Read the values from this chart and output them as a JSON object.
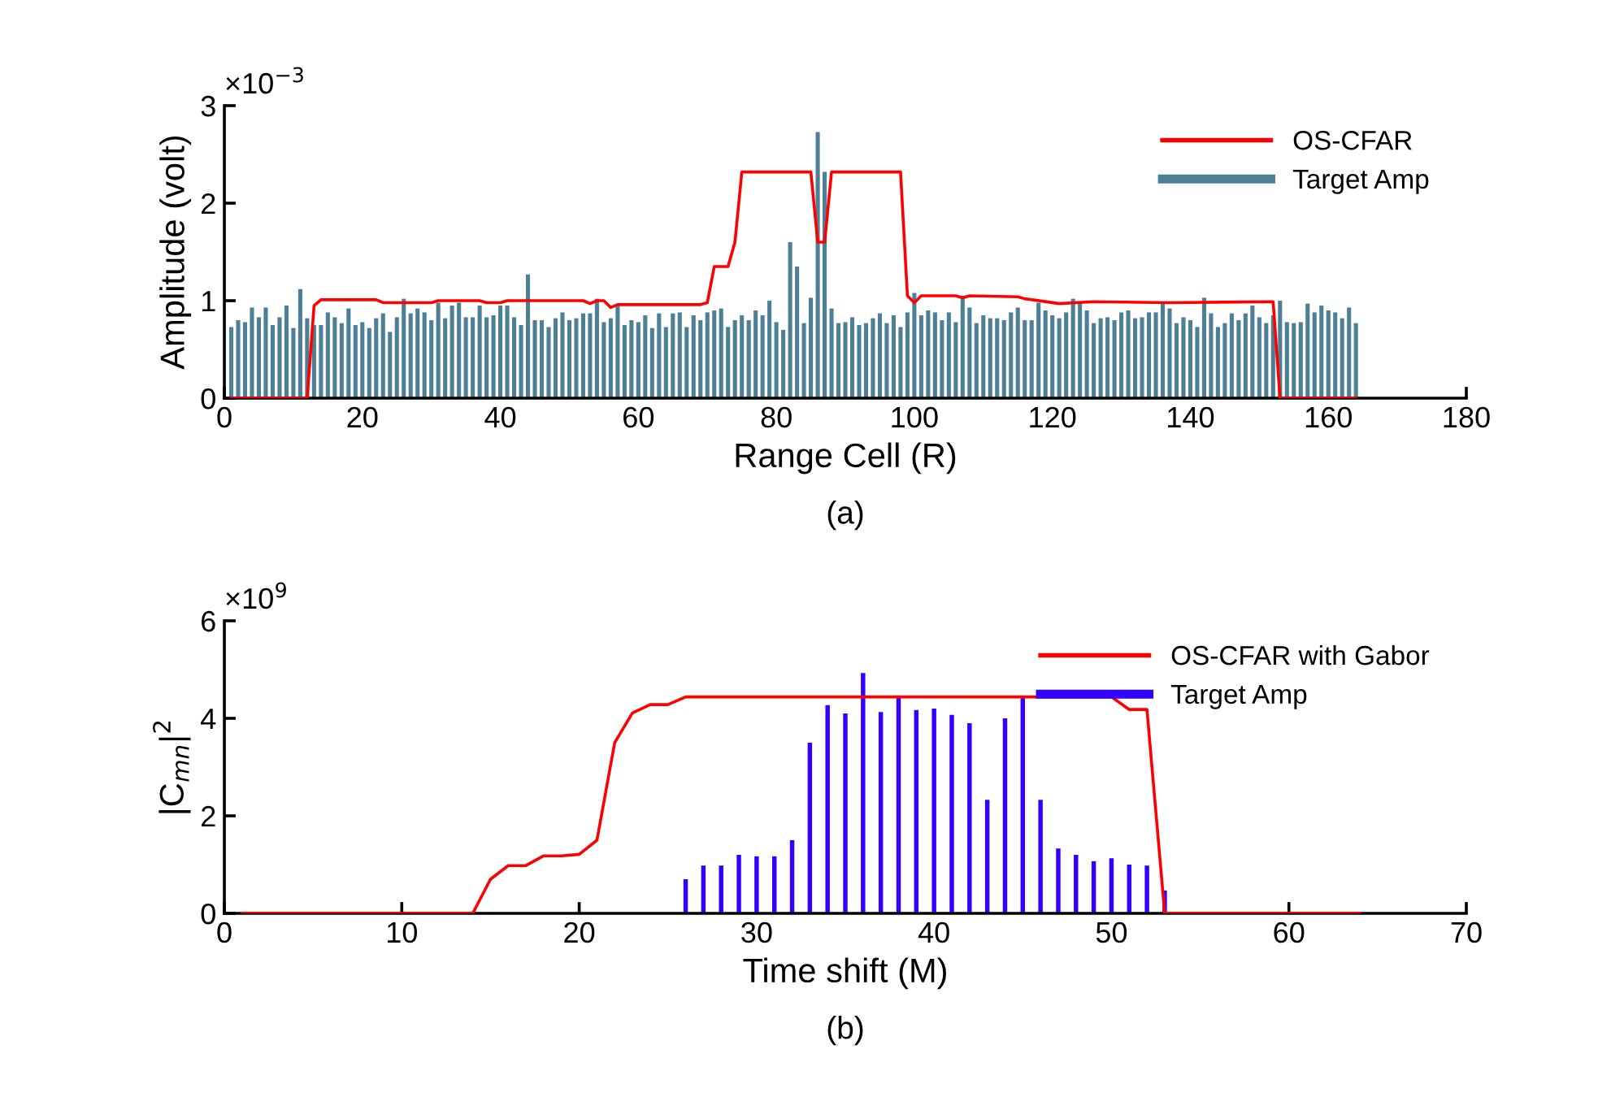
{
  "chart_data": [
    {
      "type": "bar",
      "xlabel": "Range Cell (R)",
      "ylabel": "Amplitude (volt)",
      "annotations": [
        "×10$^{−3}$",
        "(a)"
      ],
      "xlim": [
        0,
        180
      ],
      "xticks": [
        0,
        20,
        40,
        60,
        80,
        100,
        120,
        140,
        160,
        180
      ],
      "ylim": [
        0,
        3
      ],
      "yticks": [
        0,
        1,
        2,
        3
      ],
      "legend": "top right",
      "grid": false,
      "series": [
        {
          "name": "OS-CFAR",
          "type": "line",
          "color": "#ff0000",
          "x": [
            1,
            12,
            13,
            14,
            22,
            23,
            30,
            31,
            37,
            38,
            40,
            41,
            52,
            53,
            54,
            55,
            56,
            57,
            69,
            70,
            71,
            73,
            74,
            75,
            85,
            86,
            87,
            88,
            98,
            99,
            100,
            101,
            106,
            107,
            108,
            115,
            116,
            121,
            126,
            137,
            152,
            153,
            164
          ],
          "values": [
            0,
            0,
            0.95,
            1.01,
            1.01,
            0.98,
            0.98,
            1.0,
            1.0,
            0.98,
            0.98,
            1.0,
            1.0,
            0.97,
            1.0,
            1.0,
            0.93,
            0.96,
            0.96,
            0.98,
            1.35,
            1.35,
            1.6,
            2.32,
            2.32,
            1.6,
            1.6,
            2.32,
            2.32,
            1.05,
            0.98,
            1.05,
            1.05,
            1.03,
            1.05,
            1.04,
            1.02,
            0.97,
            0.99,
            0.98,
            0.99,
            0,
            0
          ]
        },
        {
          "name": "Target Amp",
          "color": "#4d7f96",
          "x": [
            1,
            2,
            3,
            4,
            5,
            6,
            7,
            8,
            9,
            10,
            11,
            12,
            13,
            14,
            15,
            16,
            17,
            18,
            19,
            20,
            21,
            22,
            23,
            24,
            25,
            26,
            27,
            28,
            29,
            30,
            31,
            32,
            33,
            34,
            35,
            36,
            37,
            38,
            39,
            40,
            41,
            42,
            43,
            44,
            45,
            46,
            47,
            48,
            49,
            50,
            51,
            52,
            53,
            54,
            55,
            56,
            57,
            58,
            59,
            60,
            61,
            62,
            63,
            64,
            65,
            66,
            67,
            68,
            69,
            70,
            71,
            72,
            73,
            74,
            75,
            76,
            77,
            78,
            79,
            80,
            81,
            82,
            83,
            84,
            85,
            86,
            87,
            88,
            89,
            90,
            91,
            92,
            93,
            94,
            95,
            96,
            97,
            98,
            99,
            100,
            101,
            102,
            103,
            104,
            105,
            106,
            107,
            108,
            109,
            110,
            111,
            112,
            113,
            114,
            115,
            116,
            117,
            118,
            119,
            120,
            121,
            122,
            123,
            124,
            125,
            126,
            127,
            128,
            129,
            130,
            131,
            132,
            133,
            134,
            135,
            136,
            137,
            138,
            139,
            140,
            141,
            142,
            143,
            144,
            145,
            146,
            147,
            148,
            149,
            150,
            151,
            152,
            153,
            154,
            155,
            156,
            157,
            158,
            159,
            160,
            161,
            162,
            163,
            164
          ],
          "values": [
            0.73,
            0.8,
            0.78,
            0.93,
            0.83,
            0.93,
            0.75,
            0.83,
            0.95,
            0.72,
            1.12,
            0.82,
            0.75,
            0.75,
            0.88,
            0.83,
            0.77,
            0.92,
            0.75,
            0.78,
            0.72,
            0.82,
            0.87,
            0.68,
            0.83,
            1.02,
            0.87,
            0.92,
            0.88,
            0.8,
            0.98,
            0.82,
            0.95,
            0.98,
            0.83,
            0.83,
            0.95,
            0.83,
            0.85,
            0.95,
            0.95,
            0.83,
            0.75,
            1.27,
            0.8,
            0.8,
            0.73,
            0.82,
            0.88,
            0.8,
            0.82,
            0.87,
            0.87,
            1.02,
            0.78,
            0.82,
            0.95,
            0.75,
            0.8,
            0.78,
            0.85,
            0.72,
            0.87,
            0.73,
            0.87,
            0.88,
            0.73,
            0.85,
            0.8,
            0.88,
            0.9,
            0.92,
            0.73,
            0.8,
            0.85,
            0.8,
            0.9,
            0.85,
            1.0,
            0.78,
            0.7,
            1.6,
            1.35,
            0.77,
            1.03,
            2.73,
            2.32,
            0.92,
            0.77,
            0.78,
            0.83,
            0.75,
            0.77,
            0.82,
            0.87,
            0.77,
            0.85,
            0.73,
            0.88,
            1.08,
            0.85,
            0.9,
            0.88,
            0.8,
            0.88,
            0.78,
            1.05,
            0.93,
            0.77,
            0.85,
            0.82,
            0.82,
            0.8,
            0.88,
            0.93,
            0.8,
            0.8,
            0.98,
            0.9,
            0.85,
            0.82,
            0.88,
            1.02,
            0.97,
            0.9,
            0.77,
            0.82,
            0.83,
            0.8,
            0.88,
            0.9,
            0.82,
            0.83,
            0.88,
            0.88,
            0.98,
            0.92,
            0.77,
            0.83,
            0.8,
            0.73,
            1.03,
            0.87,
            0.73,
            0.77,
            0.87,
            0.8,
            0.87,
            0.95,
            0.83,
            0.77,
            0.85,
            1.0,
            0.78,
            0.77,
            0.78,
            0.97,
            0.88,
            0.95,
            0.9,
            0.88,
            0.82,
            0.93,
            0.77
          ]
        }
      ]
    },
    {
      "type": "bar",
      "xlabel": "Time shift (M)",
      "ylabel": "|C$_{mn}$|$^{2}$",
      "annotations": [
        "×10$^{9}$",
        "(b)"
      ],
      "xlim": [
        0,
        70
      ],
      "xticks": [
        0,
        10,
        20,
        30,
        40,
        50,
        60,
        70
      ],
      "ylim": [
        0,
        6
      ],
      "yticks": [
        0,
        2,
        4,
        6
      ],
      "legend": "top right",
      "grid": false,
      "series": [
        {
          "name": "OS-CFAR with Gabor",
          "type": "line",
          "color": "#ff0000",
          "x": [
            1,
            14,
            15,
            16,
            17,
            18,
            19,
            20,
            21,
            22,
            23,
            24,
            25,
            26,
            50,
            51,
            52,
            53,
            64
          ],
          "values": [
            0,
            0,
            0.7,
            0.98,
            0.98,
            1.18,
            1.18,
            1.21,
            1.5,
            3.5,
            4.11,
            4.28,
            4.28,
            4.44,
            4.44,
            4.18,
            4.18,
            0,
            0
          ]
        },
        {
          "name": "Target Amp",
          "color": "#3300ff",
          "x": [
            1,
            2,
            3,
            4,
            5,
            6,
            7,
            8,
            9,
            10,
            11,
            12,
            13,
            14,
            15,
            16,
            17,
            18,
            19,
            20,
            21,
            22,
            23,
            24,
            25,
            26,
            27,
            28,
            29,
            30,
            31,
            32,
            33,
            34,
            35,
            36,
            37,
            38,
            39,
            40,
            41,
            42,
            43,
            44,
            45,
            46,
            47,
            48,
            49,
            50,
            51,
            52,
            53,
            54,
            55,
            56,
            57,
            58,
            59,
            60,
            61,
            62,
            63,
            64
          ],
          "values": [
            0,
            0,
            0,
            0,
            0,
            0,
            0,
            0,
            0,
            0,
            0,
            0,
            0,
            0,
            0,
            0,
            0,
            0,
            0,
            0,
            0,
            0,
            0,
            0,
            0,
            0.7,
            0.98,
            0.98,
            1.2,
            1.17,
            1.17,
            1.5,
            3.5,
            4.27,
            4.1,
            4.93,
            4.13,
            4.43,
            4.17,
            4.2,
            4.07,
            3.9,
            2.33,
            4.0,
            4.43,
            2.33,
            1.33,
            1.2,
            1.07,
            1.13,
            1.0,
            0.98,
            0.47,
            0,
            0,
            0,
            0,
            0,
            0,
            0,
            0,
            0,
            0,
            0
          ]
        }
      ]
    }
  ]
}
